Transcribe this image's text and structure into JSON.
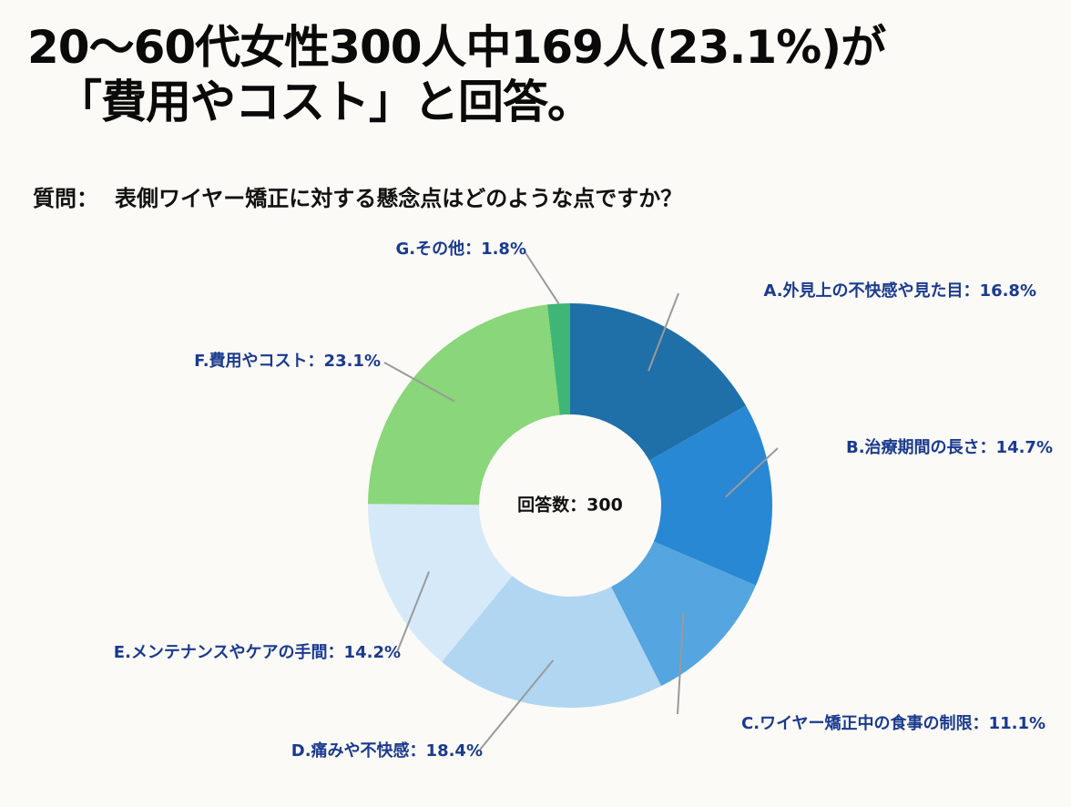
{
  "headline": {
    "line1": "20〜60代女性300人中169人(23.1%)が",
    "line2": "「費用やコスト」と回答。"
  },
  "question": {
    "label": "質問：",
    "text": "表側ワイヤー矯正に対する懸念点はどのような点ですか？"
  },
  "chart_data": {
    "type": "pie",
    "center_label": "回答数：300",
    "slices": [
      {
        "label": "A.外見上の不快感や見た目：16.8%",
        "value": 16.8,
        "color": "#1f6fa8"
      },
      {
        "label": "B.治療期間の長さ：14.7%",
        "value": 14.7,
        "color": "#2888d4"
      },
      {
        "label": "C.ワイヤー矯正中の食事の制限：11.1%",
        "value": 11.1,
        "color": "#54a5e0"
      },
      {
        "label": "D.痛みや不快感：18.4%",
        "value": 18.4,
        "color": "#b0d6f2"
      },
      {
        "label": "E.メンテナンスやケアの手間：14.2%",
        "value": 14.2,
        "color": "#d6e9f8"
      },
      {
        "label": "F.費用やコスト：23.1%",
        "value": 23.1,
        "color": "#8ad67a"
      },
      {
        "label": "G.その他：1.8%",
        "value": 1.8,
        "color": "#3fb576"
      }
    ],
    "label_color": "#1a3a8f",
    "leader_color": "#9a9a9a"
  }
}
